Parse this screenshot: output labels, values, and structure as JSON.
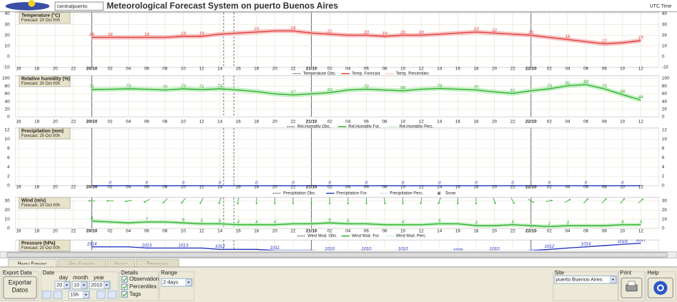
{
  "header": {
    "site_code": "centralpuerto",
    "title": "Meteorological Forecast System on puerto Buenos Aires",
    "time_zone": "UTC Time"
  },
  "x_labels": [
    "16",
    "18",
    "20",
    "22",
    "20/10",
    "02",
    "04",
    "06",
    "08",
    "10",
    "12",
    "14",
    "16",
    "18",
    "20",
    "22",
    "21/10",
    "02",
    "04",
    "06",
    "08",
    "10",
    "12",
    "14",
    "16",
    "18",
    "20",
    "22",
    "22/10",
    "02",
    "04",
    "06",
    "08",
    "10",
    "12"
  ],
  "panels": [
    {
      "title": "Temperature (°C)",
      "forecast": "Forecast:  20 Oct 00h",
      "ylim": [
        -10,
        40
      ],
      "yticks": [
        -10,
        0,
        10,
        20,
        30,
        40
      ],
      "color": "#e23b3b",
      "band_color": "#f5b3b3",
      "spread": 2,
      "values": [
        null,
        null,
        null,
        null,
        18,
        18,
        18,
        18,
        18,
        19,
        19,
        21,
        22,
        23,
        24,
        24,
        22,
        21,
        20,
        20,
        19,
        20,
        20,
        21,
        22,
        23,
        22,
        21,
        20,
        18,
        16,
        14,
        12,
        13,
        15
      ],
      "tags": [
        null,
        null,
        null,
        null,
        18,
        18,
        null,
        18,
        null,
        19,
        19,
        null,
        null,
        23,
        null,
        24,
        null,
        21,
        null,
        20,
        19,
        20,
        20,
        null,
        null,
        23,
        22,
        null,
        20,
        null,
        16,
        null,
        12,
        null,
        15
      ],
      "legend": [
        "Temperature Obs.",
        "Temp. Forecast",
        "Temp. Percentiles"
      ]
    },
    {
      "title": "Relative humidity (%)",
      "forecast": "Forecast:  20 Oct 00h",
      "ylim": [
        0,
        100
      ],
      "yticks": [
        0,
        20,
        40,
        60,
        80,
        100
      ],
      "color": "#2fae2f",
      "band_color": "#b8ecb8",
      "spread": 6,
      "values": [
        null,
        null,
        null,
        null,
        71,
        72,
        73,
        72,
        70,
        73,
        71,
        73,
        70,
        66,
        60,
        57,
        60,
        63,
        70,
        72,
        70,
        68,
        72,
        74,
        72,
        70,
        65,
        61,
        68,
        73,
        81,
        84,
        73,
        58,
        44
      ],
      "tags": [
        null,
        null,
        null,
        null,
        71,
        null,
        73,
        null,
        70,
        73,
        71,
        73,
        null,
        null,
        null,
        57,
        null,
        63,
        null,
        72,
        null,
        68,
        null,
        74,
        null,
        70,
        null,
        61,
        null,
        73,
        81,
        84,
        73,
        58,
        44
      ],
      "legend": [
        "Rel.Humidity Obs.",
        "Rel.Humidity For.",
        "Rel.Humidity Perc."
      ]
    },
    {
      "title": "Precipitation (mm)",
      "forecast": "Forecast:  20 Oct 00h",
      "ylim": [
        0,
        12
      ],
      "yticks": [
        0,
        2,
        4,
        6,
        8,
        10,
        12
      ],
      "color": "#2742c4",
      "band_color": "#c9d3f5",
      "spread": 0,
      "values": [
        null,
        null,
        null,
        null,
        0,
        0,
        0,
        0,
        0,
        0,
        0,
        0,
        0,
        0,
        0,
        0,
        0,
        0,
        0,
        0,
        0,
        0,
        0,
        0,
        0,
        0,
        0,
        0,
        0,
        0,
        0,
        0,
        0,
        0,
        0
      ],
      "tags": [
        null,
        null,
        null,
        null,
        null,
        0,
        null,
        0,
        null,
        0,
        null,
        0,
        null,
        0,
        null,
        0,
        null,
        0,
        null,
        0,
        null,
        0,
        null,
        0,
        null,
        0,
        null,
        0,
        null,
        0,
        null,
        0,
        null,
        0,
        null
      ],
      "legend": [
        "Precipitation Obs.",
        "Precipitation For.",
        "Precipitation Perc.",
        "Snow"
      ]
    },
    {
      "title": "Wind  (m/s)",
      "forecast": "Forecast:  20 Oct 00h",
      "ylim": [
        0,
        30
      ],
      "yticks": [
        0,
        10,
        20,
        30
      ],
      "color": "#2fae2f",
      "band_color": "#b8ecb8",
      "spread": 2,
      "values": [
        null,
        null,
        null,
        null,
        8,
        7,
        6,
        7,
        7,
        6,
        5,
        5,
        4,
        4,
        4,
        5,
        5,
        6,
        5,
        5,
        4,
        4,
        4,
        5,
        5,
        3,
        3,
        4,
        3,
        2,
        3,
        3,
        3,
        4,
        4
      ],
      "tags": [
        null,
        null,
        null,
        null,
        8,
        null,
        null,
        7,
        null,
        6,
        5,
        5,
        4,
        4,
        4,
        null,
        null,
        6,
        5,
        null,
        null,
        4,
        null,
        5,
        null,
        3,
        null,
        4,
        null,
        2,
        3,
        null,
        null,
        4,
        4
      ],
      "direction": [
        null,
        null,
        null,
        null,
        90,
        90,
        80,
        60,
        45,
        40,
        30,
        20,
        10,
        0,
        0,
        0,
        0,
        0,
        0,
        0,
        350,
        0,
        10,
        20,
        0,
        0,
        340,
        330,
        300,
        260,
        240,
        225,
        225,
        220,
        230
      ],
      "legend": [
        "Wind Mod. Obs.",
        "Wind Mod. For.",
        "Wind Mod. Perc.",
        "Wind Dir For.",
        "Wind Dir Obs.",
        "Null Dir For."
      ]
    },
    {
      "title": "Pressure (hPa)",
      "forecast": "Forecast:  20 Oct 00h",
      "ylim": [
        1000,
        1020
      ],
      "color": "#2233c2",
      "values": [
        null,
        null,
        null,
        null,
        1014,
        1014,
        1014,
        1013,
        1013,
        1013,
        1013,
        1012,
        1012,
        1012,
        1011,
        1011,
        1011,
        1010,
        1010,
        1010,
        1010,
        1010,
        1010,
        1009,
        1009,
        1009,
        1010,
        1010,
        1011,
        1012,
        1013,
        1014,
        1015,
        1016,
        1017
      ],
      "tags": [
        null,
        null,
        null,
        null,
        1014,
        null,
        null,
        1013,
        null,
        1013,
        null,
        1012,
        null,
        null,
        1011,
        null,
        null,
        1010,
        null,
        1010,
        null,
        1010,
        null,
        null,
        1009,
        null,
        1010,
        null,
        null,
        1012,
        null,
        1014,
        null,
        1016,
        1017
      ]
    }
  ],
  "tabs": [
    "Hourly Forecast",
    "Daily Forecast",
    "History",
    "Preferences"
  ],
  "controls": {
    "export": {
      "label": "Export Data",
      "button": [
        "Exportar",
        "Datos"
      ]
    },
    "date": {
      "label": "Date",
      "day_label": "day",
      "month_label": "month",
      "year_label": "year",
      "day": 20,
      "month": 10,
      "year": 2010,
      "hour": "15h"
    },
    "details": {
      "label": "Details",
      "options": [
        "Observation",
        "Percentiles",
        "Tags"
      ]
    },
    "range": {
      "label": "Range",
      "value": "2 days"
    },
    "site": {
      "label": "Site",
      "value": "puerto Buenos Aires"
    },
    "print": {
      "label": "Print"
    },
    "help": {
      "label": "Help"
    }
  }
}
